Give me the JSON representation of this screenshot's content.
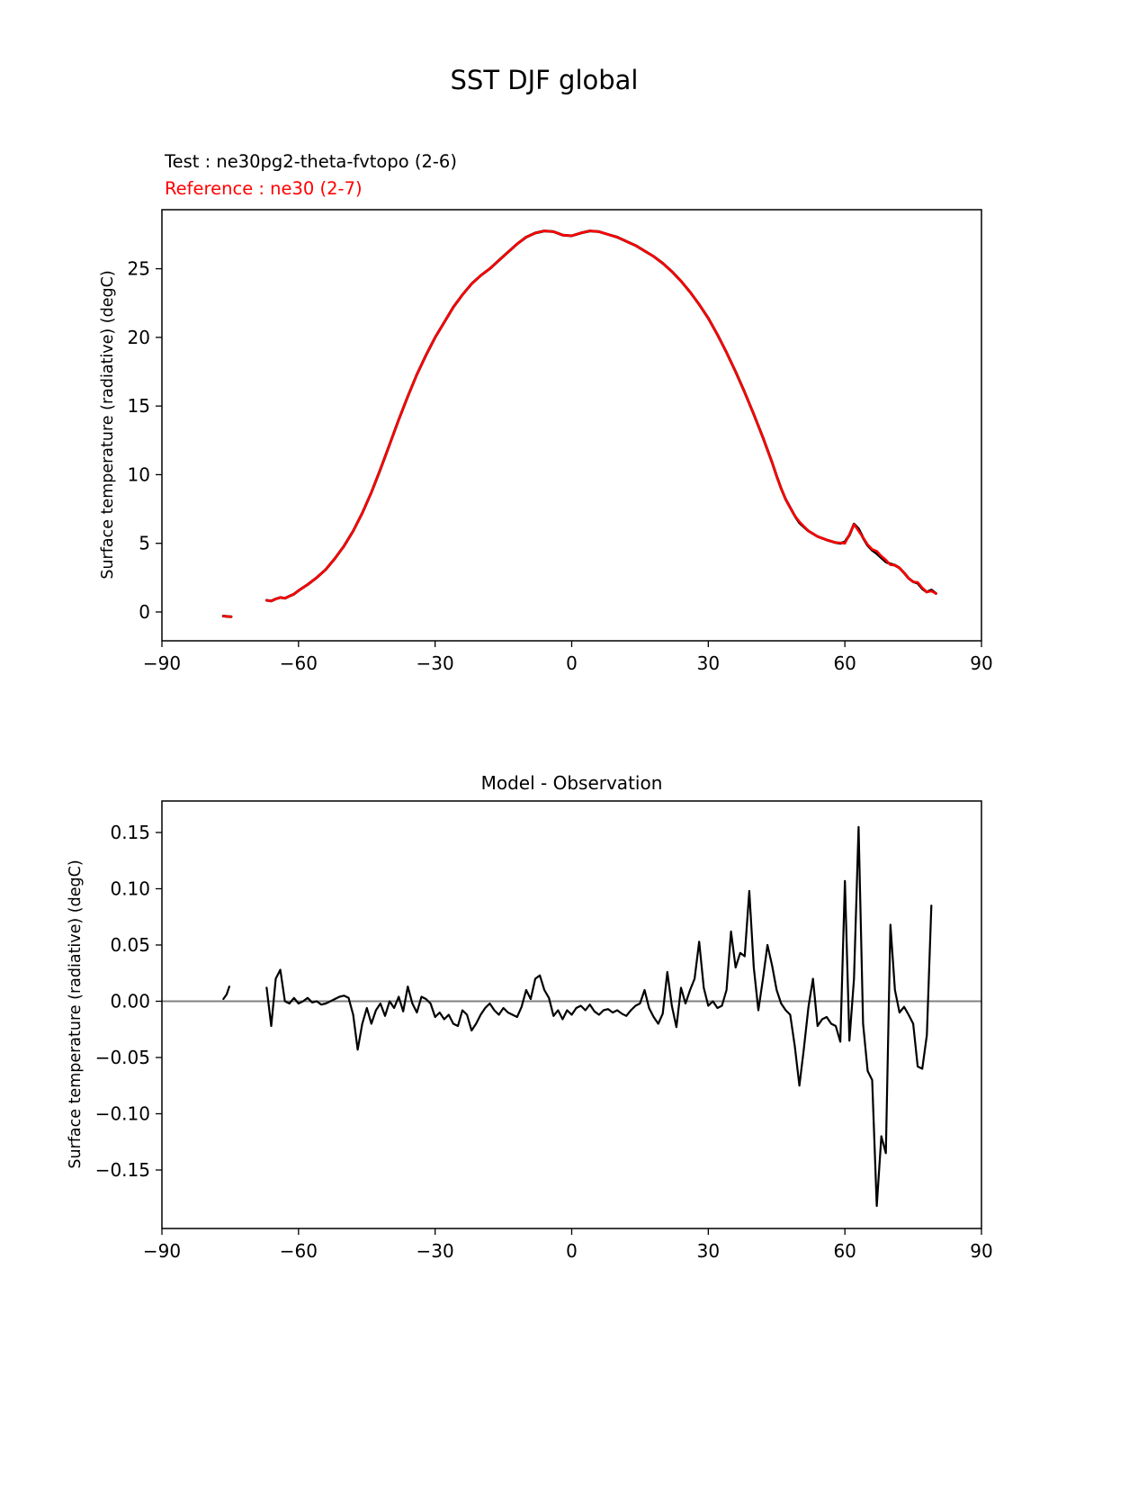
{
  "figure": {
    "title": "SST DJF global"
  },
  "top_chart": {
    "legend_test": "Test : ne30pg2-theta-fvtopo (2-6)",
    "legend_reference": "Reference : ne30 (2-7)",
    "ylabel": "Surface temperature (radiative) (degC)",
    "colors": {
      "test": "#000000",
      "reference": "#ff0000"
    }
  },
  "bottom_chart": {
    "title": "Model - Observation",
    "ylabel": "Surface temperature (radiative) (degC)",
    "colors": {
      "difference": "#000000",
      "zero_line": "#808080"
    }
  },
  "chart_data": [
    {
      "id": "zonal-mean-sst",
      "type": "line",
      "title": "SST DJF global",
      "xlabel": "",
      "ylabel": "Surface temperature (radiative) (degC)",
      "xlim": [
        -90,
        90
      ],
      "ylim": [
        -2.1,
        29.3
      ],
      "xticks": [
        -90,
        -60,
        -30,
        0,
        30,
        60,
        90
      ],
      "xtick_labels": [
        "−90",
        "−60",
        "−30",
        "0",
        "30",
        "60",
        "90"
      ],
      "yticks": [
        0,
        5,
        10,
        15,
        20,
        25
      ],
      "ytick_labels": [
        "0",
        "5",
        "10",
        "15",
        "20",
        "25"
      ],
      "grid": false,
      "legend_position": "above-axes-left",
      "series": [
        {
          "name": "Test : ne30pg2-theta-fvtopo (2-6)",
          "color": "#000000",
          "width": 3,
          "segments": [
            {
              "x": [
                -76.5,
                -75.6,
                -74.8
              ],
              "y": [
                -0.3,
                -0.33,
                -0.35
              ]
            },
            {
              "x": [
                -67,
                -66,
                -65,
                -64,
                -63,
                -62,
                -61,
                -60,
                -58,
                -56,
                -54,
                -52,
                -50,
                -48,
                -46,
                -44,
                -42,
                -40,
                -38,
                -36,
                -34,
                -32,
                -30,
                -28,
                -26,
                -24,
                -22,
                -20,
                -18,
                -16,
                -14,
                -12,
                -10,
                -8,
                -6,
                -4,
                -2,
                0,
                2,
                4,
                6,
                8,
                10,
                12,
                14,
                16,
                18,
                20,
                22,
                24,
                26,
                28,
                30,
                32,
                34,
                36,
                38,
                40,
                42,
                44,
                45,
                46,
                47,
                48,
                49,
                50,
                52,
                54,
                56,
                58,
                59,
                60,
                61,
                62,
                63,
                64,
                65,
                66,
                67,
                68,
                69,
                70,
                71,
                72,
                73,
                74,
                75,
                76,
                77,
                78,
                79,
                80
              ],
              "y": [
                0.85,
                0.8,
                0.95,
                1.05,
                1.0,
                1.15,
                1.3,
                1.55,
                2.0,
                2.5,
                3.1,
                3.9,
                4.8,
                5.9,
                7.2,
                8.7,
                10.4,
                12.2,
                14.0,
                15.7,
                17.3,
                18.7,
                20.0,
                21.1,
                22.2,
                23.1,
                23.9,
                24.5,
                25.0,
                25.6,
                26.2,
                26.8,
                27.3,
                27.6,
                27.75,
                27.7,
                27.45,
                27.4,
                27.6,
                27.75,
                27.7,
                27.5,
                27.3,
                27.0,
                26.7,
                26.3,
                25.9,
                25.4,
                24.8,
                24.1,
                23.3,
                22.4,
                21.4,
                20.2,
                18.9,
                17.5,
                16.0,
                14.4,
                12.7,
                10.9,
                9.9,
                9.0,
                8.2,
                7.6,
                7.0,
                6.5,
                5.9,
                5.5,
                5.25,
                5.05,
                5.0,
                5.1,
                5.6,
                6.4,
                6.05,
                5.4,
                4.85,
                4.5,
                4.25,
                3.95,
                3.65,
                3.5,
                3.4,
                3.2,
                2.85,
                2.45,
                2.2,
                2.1,
                1.7,
                1.45,
                1.6,
                1.35
              ]
            }
          ]
        },
        {
          "name": "Reference : ne30 (2-7)",
          "color": "#ff0000",
          "width": 2.6,
          "segments": [
            {
              "x": [
                -76.5,
                -75.6,
                -74.8
              ],
              "y": [
                -0.3,
                -0.33,
                -0.35
              ]
            },
            {
              "x": [
                -67,
                -66,
                -65,
                -64,
                -63,
                -62,
                -61,
                -60,
                -58,
                -56,
                -54,
                -52,
                -50,
                -48,
                -46,
                -44,
                -42,
                -40,
                -38,
                -36,
                -34,
                -32,
                -30,
                -28,
                -26,
                -24,
                -22,
                -20,
                -18,
                -16,
                -14,
                -12,
                -10,
                -8,
                -6,
                -4,
                -2,
                0,
                2,
                4,
                6,
                8,
                10,
                12,
                14,
                16,
                18,
                20,
                22,
                24,
                26,
                28,
                30,
                32,
                34,
                36,
                38,
                40,
                42,
                44,
                45,
                46,
                47,
                48,
                49,
                50,
                52,
                54,
                56,
                58,
                59,
                60,
                61,
                62,
                63,
                64,
                65,
                66,
                67,
                68,
                69,
                70,
                71,
                72,
                73,
                74,
                75,
                76,
                77,
                78,
                79,
                80
              ],
              "y": [
                0.85,
                0.8,
                0.95,
                1.05,
                1.0,
                1.15,
                1.3,
                1.55,
                2.0,
                2.5,
                3.1,
                3.9,
                4.8,
                5.9,
                7.2,
                8.7,
                10.4,
                12.2,
                14.0,
                15.7,
                17.3,
                18.7,
                20.0,
                21.1,
                22.2,
                23.1,
                23.9,
                24.5,
                25.0,
                25.6,
                26.2,
                26.8,
                27.3,
                27.6,
                27.75,
                27.7,
                27.45,
                27.4,
                27.6,
                27.75,
                27.7,
                27.5,
                27.3,
                27.0,
                26.7,
                26.3,
                25.9,
                25.4,
                24.8,
                24.1,
                23.3,
                22.4,
                21.4,
                20.2,
                18.9,
                17.5,
                16.0,
                14.4,
                12.7,
                10.9,
                9.9,
                9.0,
                8.2,
                7.6,
                7.0,
                6.58,
                5.9,
                5.5,
                5.25,
                5.05,
                5.04,
                4.99,
                5.64,
                6.38,
                5.9,
                5.42,
                4.91,
                4.57,
                4.43,
                4.07,
                3.79,
                3.43,
                3.4,
                3.2,
                2.85,
                2.45,
                2.2,
                2.16,
                1.76,
                1.45,
                1.52,
                1.35
              ]
            }
          ]
        }
      ]
    },
    {
      "id": "model-minus-observation",
      "type": "line",
      "title": "Model - Observation",
      "xlabel": "",
      "ylabel": "Surface temperature (radiative) (degC)",
      "xlim": [
        -90,
        90
      ],
      "ylim": [
        -0.202,
        0.178
      ],
      "xticks": [
        -90,
        -60,
        -30,
        0,
        30,
        60,
        90
      ],
      "xtick_labels": [
        "−90",
        "−60",
        "−30",
        "0",
        "30",
        "60",
        "90"
      ],
      "yticks": [
        -0.15,
        -0.1,
        -0.05,
        0.0,
        0.05,
        0.1,
        0.15
      ],
      "ytick_labels": [
        "−0.15",
        "−0.10",
        "−0.05",
        "0.00",
        "0.05",
        "0.10",
        "0.15"
      ],
      "grid": false,
      "zero_line": {
        "value": 0,
        "color": "#808080",
        "width": 2
      },
      "series": [
        {
          "name": "Model - Observation",
          "color": "#000000",
          "width": 2.2,
          "segments": [
            {
              "x": [
                -76.5,
                -75.8,
                -75.2
              ],
              "y": [
                0.002,
                0.006,
                0.013
              ]
            },
            {
              "x_start": -67,
              "x_step": 1,
              "y": [
                0.012,
                -0.022,
                0.02,
                0.028,
                0.0,
                -0.002,
                0.003,
                -0.002,
                0.0,
                0.003,
                -0.001,
                0.0,
                -0.003,
                -0.002,
                0.0,
                0.002,
                0.004,
                0.005,
                0.003,
                -0.012,
                -0.043,
                -0.02,
                -0.006,
                -0.02,
                -0.008,
                -0.002,
                -0.013,
                0.0,
                -0.006,
                0.004,
                -0.009,
                0.013,
                -0.002,
                -0.01,
                0.004,
                0.002,
                -0.002,
                -0.014,
                -0.01,
                -0.016,
                -0.012,
                -0.02,
                -0.022,
                -0.008,
                -0.012,
                -0.026,
                -0.02,
                -0.012,
                -0.006,
                -0.002,
                -0.008,
                -0.012,
                -0.006,
                -0.01,
                -0.012,
                -0.014,
                -0.005,
                0.01,
                0.002,
                0.02,
                0.023,
                0.01,
                0.003,
                -0.013,
                -0.008,
                -0.016,
                -0.008,
                -0.012,
                -0.006,
                -0.004,
                -0.008,
                -0.003,
                -0.009,
                -0.012,
                -0.008,
                -0.007,
                -0.01,
                -0.008,
                -0.011,
                -0.013,
                -0.008,
                -0.004,
                -0.002,
                0.01,
                -0.006,
                -0.014,
                -0.02,
                -0.011,
                0.026,
                -0.004,
                -0.023,
                0.012,
                -0.002,
                0.01,
                0.02,
                0.053,
                0.012,
                -0.004,
                0.0,
                -0.006,
                -0.004,
                0.01,
                0.062,
                0.03,
                0.043,
                0.04,
                0.098,
                0.03,
                -0.008,
                0.02,
                0.05,
                0.032,
                0.01,
                -0.002,
                -0.008,
                -0.012,
                -0.04,
                -0.075,
                -0.042,
                -0.005,
                0.02,
                -0.022,
                -0.016,
                -0.014,
                -0.02,
                -0.022,
                -0.036,
                0.107,
                -0.035,
                0.02,
                0.155,
                -0.02,
                -0.062,
                -0.07,
                -0.182,
                -0.12,
                -0.135,
                0.068,
                0.01,
                -0.01,
                -0.005,
                -0.012,
                -0.02,
                -0.058,
                -0.06,
                -0.03,
                0.085
              ]
            }
          ]
        }
      ]
    }
  ]
}
